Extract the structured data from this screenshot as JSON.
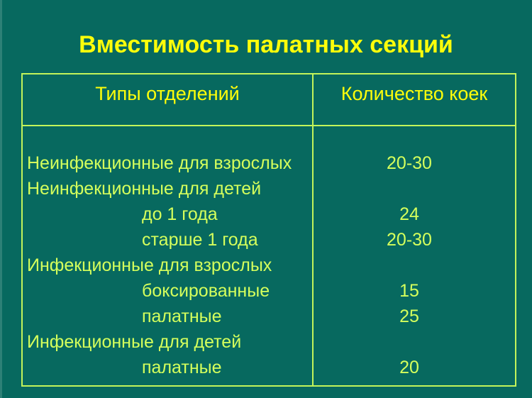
{
  "slide": {
    "title": "Вместимость палатных секций"
  },
  "table": {
    "headers": {
      "col1": "Типы отделений",
      "col2": "Количество коек"
    },
    "rows": [
      {
        "label": "Неинфекционные для взрослых",
        "value": "20-30"
      },
      {
        "label": "Неинфекционные для детей",
        "value": ""
      },
      {
        "label": "до 1 года",
        "value": "24"
      },
      {
        "label": "старше 1 года",
        "value": "20-30"
      },
      {
        "label": "Инфекционные для взрослых",
        "value": ""
      },
      {
        "label": "боксированные",
        "value": "15"
      },
      {
        "label": "палатные",
        "value": "25"
      },
      {
        "label": "Инфекционные для детей",
        "value": ""
      },
      {
        "label": "палатные",
        "value": "20"
      }
    ]
  },
  "colors": {
    "bg": "#07695f",
    "edge": "#2d8177",
    "title": "#fefe0a",
    "line": "#c3f45a",
    "body-text": "#d5ff5c"
  }
}
